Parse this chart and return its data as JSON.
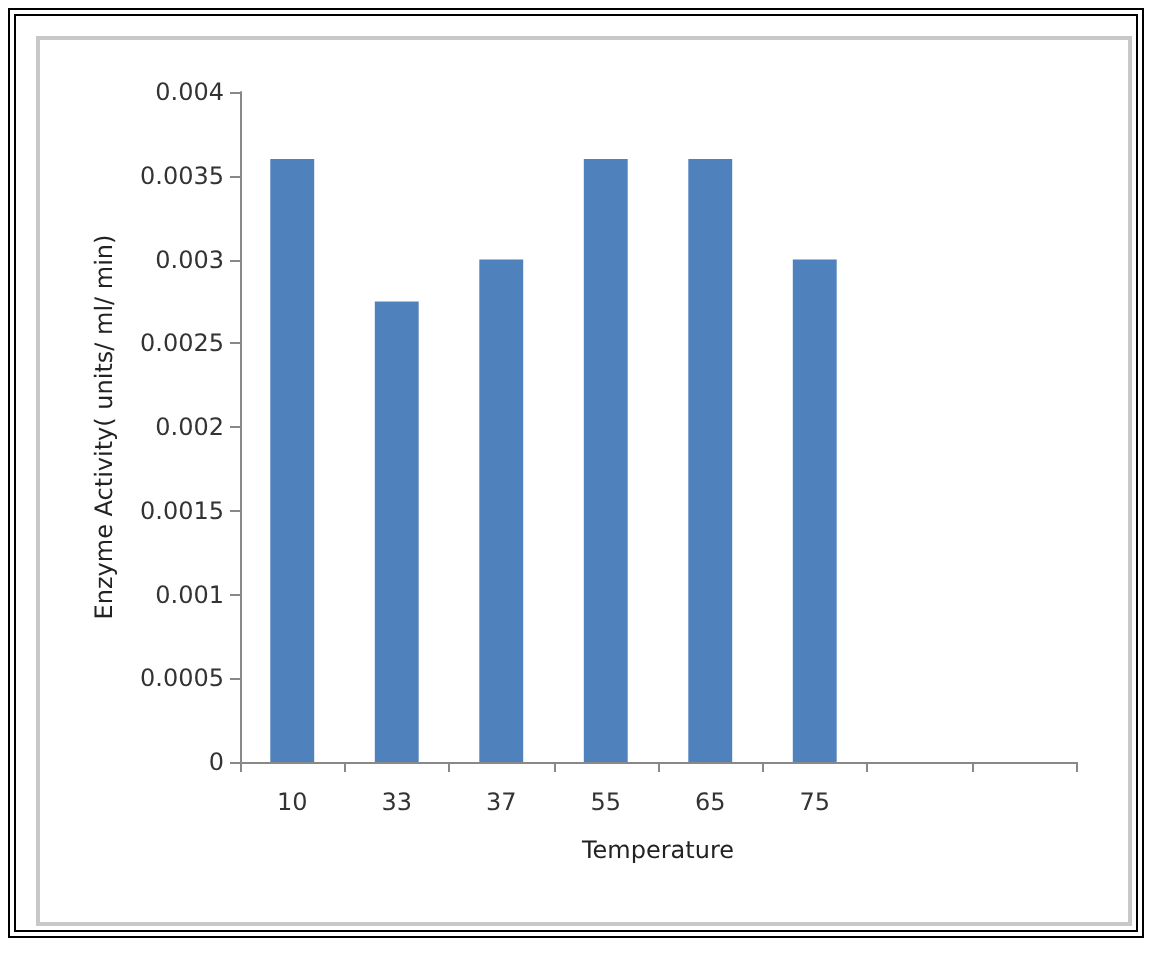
{
  "chart_data": {
    "type": "bar",
    "xlabel": "Temperature",
    "ylabel": "Enzyme Activity( units/ ml/ min)",
    "categories": [
      "10",
      "33",
      "37",
      "55",
      "65",
      "75",
      null,
      null
    ],
    "values": [
      0.0036,
      0.00275,
      0.003,
      0.0036,
      0.0036,
      0.003,
      null,
      null
    ],
    "color": "#4f81bd",
    "ylim": [
      0,
      0.004
    ],
    "yticks": [
      0,
      0.0005,
      0.001,
      0.0015,
      0.002,
      0.0025,
      0.003,
      0.0035,
      0.004
    ],
    "grid": false
  }
}
